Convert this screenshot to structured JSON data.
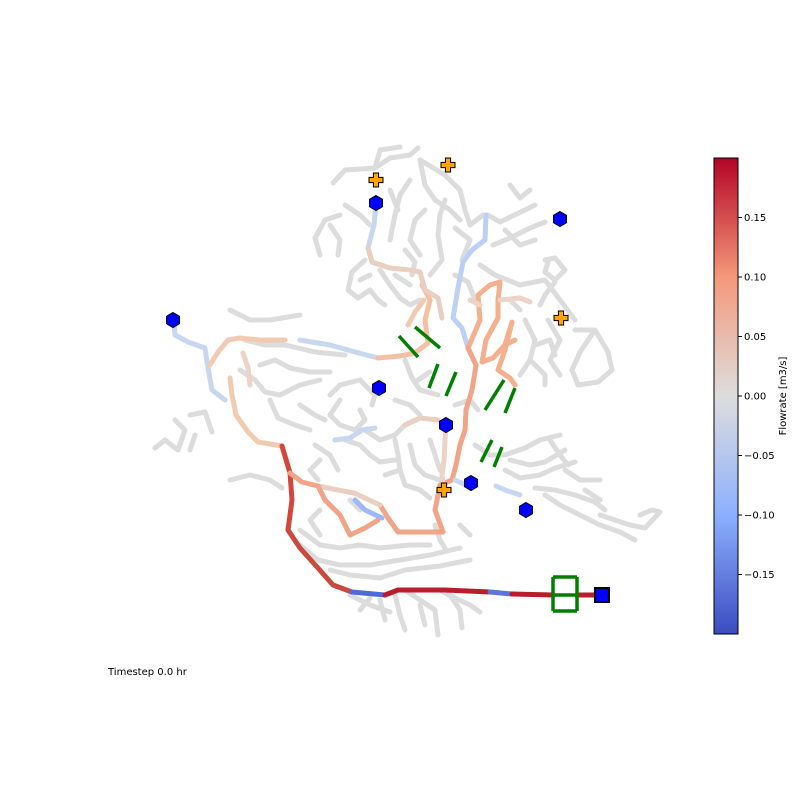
{
  "timestep_text": "Timestep 0.0 hr",
  "colorbar": {
    "label": "Flowrate [m3/s]",
    "vmin": -0.2,
    "vmax": 0.2,
    "ticks": [
      "0.15",
      "0.10",
      "0.05",
      "0.00",
      "−0.05",
      "−0.10",
      "−0.15"
    ],
    "tick_values": [
      0.15,
      0.1,
      0.05,
      0.0,
      -0.05,
      -0.1,
      -0.15
    ],
    "colormap": "coolwarm",
    "color_low": "#3b4cc0",
    "color_mid": "#dddddd",
    "color_high": "#b40426"
  },
  "legend_colors": {
    "zero_flow_pipe": "#dcdcdc",
    "pump": "#008000",
    "junction_marker": "#0000ff",
    "reservoir_marker": "#0000ff",
    "source_marker": "#ffa500"
  },
  "icons": {
    "junction": "hexagon-icon",
    "reservoir": "square-icon",
    "source": "plus-icon",
    "pump": "pump-icon"
  }
}
